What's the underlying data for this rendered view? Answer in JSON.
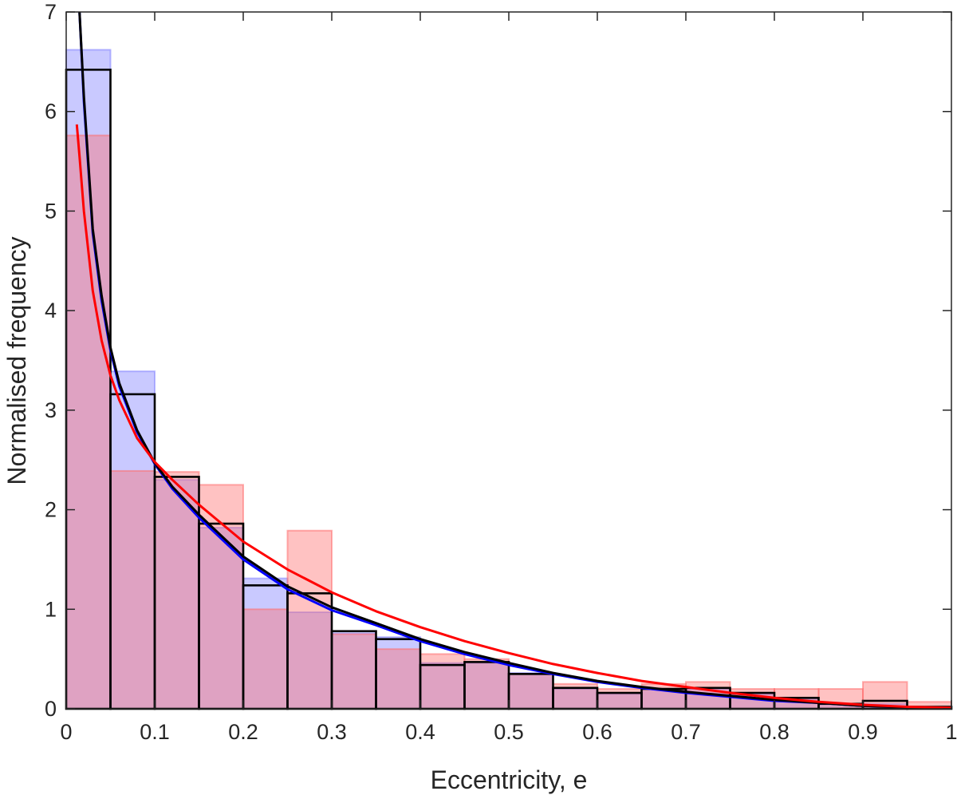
{
  "chart_data": {
    "type": "bar",
    "title": "",
    "xlabel": "Eccentricity, e",
    "ylabel": "Normalised frequency",
    "xlim": [
      0,
      1
    ],
    "ylim": [
      0,
      7
    ],
    "xticks": [
      0,
      0.1,
      0.2,
      0.3,
      0.4,
      0.5,
      0.6,
      0.7,
      0.8,
      0.9,
      1
    ],
    "xtick_labels": [
      "0",
      "0.1",
      "0.2",
      "0.3",
      "0.4",
      "0.5",
      "0.6",
      "0.7",
      "0.8",
      "0.9",
      "1"
    ],
    "yticks": [
      0,
      1,
      2,
      3,
      4,
      5,
      6,
      7
    ],
    "ytick_labels": [
      "0",
      "1",
      "2",
      "3",
      "4",
      "5",
      "6",
      "7"
    ],
    "grid": false,
    "box": true,
    "bin_width": 0.05,
    "bin_edges": [
      0,
      0.05,
      0.1,
      0.15,
      0.2,
      0.25,
      0.3,
      0.35,
      0.4,
      0.45,
      0.5,
      0.55,
      0.6,
      0.65,
      0.7,
      0.75,
      0.8,
      0.85,
      0.9,
      0.95,
      1.0
    ],
    "histograms": [
      {
        "style": "filled",
        "color": "#7f7fff",
        "opacity": 0.42,
        "values": [
          6.62,
          3.39,
          2.3,
          1.82,
          1.31,
          0.97,
          0.76,
          0.72,
          0.46,
          0.46,
          0.36,
          0.2,
          0.15,
          0.2,
          0.2,
          0.15,
          0.1,
          0.05,
          0.05,
          0.0
        ]
      },
      {
        "style": "filled",
        "color": "#ff6e6e",
        "opacity": 0.42,
        "values": [
          5.76,
          2.39,
          2.38,
          2.25,
          1.0,
          1.79,
          0.75,
          0.6,
          0.55,
          0.5,
          0.35,
          0.25,
          0.2,
          0.25,
          0.27,
          0.2,
          0.2,
          0.2,
          0.27,
          0.07
        ]
      },
      {
        "style": "outline",
        "color": "#000000",
        "values": [
          6.42,
          3.16,
          2.33,
          1.86,
          1.24,
          1.16,
          0.78,
          0.7,
          0.44,
          0.47,
          0.35,
          0.21,
          0.16,
          0.2,
          0.21,
          0.16,
          0.11,
          0.05,
          0.08,
          0.02
        ]
      }
    ],
    "curves": [
      {
        "color": "#0000ff",
        "points": [
          [
            0.015,
            7.0
          ],
          [
            0.02,
            6.1
          ],
          [
            0.03,
            4.78
          ],
          [
            0.04,
            4.1
          ],
          [
            0.05,
            3.6
          ],
          [
            0.06,
            3.24
          ],
          [
            0.08,
            2.78
          ],
          [
            0.1,
            2.46
          ],
          [
            0.12,
            2.21
          ],
          [
            0.15,
            1.92
          ],
          [
            0.2,
            1.5
          ],
          [
            0.25,
            1.2
          ],
          [
            0.3,
            0.99
          ],
          [
            0.35,
            0.84
          ],
          [
            0.4,
            0.68
          ],
          [
            0.45,
            0.55
          ],
          [
            0.5,
            0.44
          ],
          [
            0.55,
            0.35
          ],
          [
            0.6,
            0.27
          ],
          [
            0.65,
            0.21
          ],
          [
            0.7,
            0.16
          ],
          [
            0.75,
            0.12
          ],
          [
            0.8,
            0.08
          ],
          [
            0.85,
            0.06
          ],
          [
            0.9,
            0.03
          ],
          [
            0.95,
            0.015
          ],
          [
            1.0,
            0.005
          ]
        ]
      },
      {
        "color": "#000000",
        "points": [
          [
            0.015,
            7.0
          ],
          [
            0.02,
            6.15
          ],
          [
            0.03,
            4.82
          ],
          [
            0.04,
            4.15
          ],
          [
            0.05,
            3.63
          ],
          [
            0.06,
            3.27
          ],
          [
            0.08,
            2.8
          ],
          [
            0.1,
            2.47
          ],
          [
            0.12,
            2.23
          ],
          [
            0.15,
            1.95
          ],
          [
            0.2,
            1.53
          ],
          [
            0.25,
            1.23
          ],
          [
            0.3,
            1.02
          ],
          [
            0.35,
            0.86
          ],
          [
            0.4,
            0.7
          ],
          [
            0.45,
            0.57
          ],
          [
            0.5,
            0.46
          ],
          [
            0.55,
            0.36
          ],
          [
            0.6,
            0.28
          ],
          [
            0.65,
            0.22
          ],
          [
            0.7,
            0.17
          ],
          [
            0.75,
            0.13
          ],
          [
            0.8,
            0.09
          ],
          [
            0.85,
            0.06
          ],
          [
            0.9,
            0.03
          ],
          [
            0.95,
            0.015
          ],
          [
            1.0,
            0.005
          ]
        ]
      },
      {
        "color": "#ff0000",
        "points": [
          [
            0.012,
            5.87
          ],
          [
            0.015,
            5.55
          ],
          [
            0.02,
            5.0
          ],
          [
            0.03,
            4.2
          ],
          [
            0.04,
            3.7
          ],
          [
            0.05,
            3.35
          ],
          [
            0.06,
            3.1
          ],
          [
            0.08,
            2.72
          ],
          [
            0.1,
            2.48
          ],
          [
            0.12,
            2.3
          ],
          [
            0.15,
            2.05
          ],
          [
            0.2,
            1.68
          ],
          [
            0.25,
            1.4
          ],
          [
            0.3,
            1.17
          ],
          [
            0.35,
            0.98
          ],
          [
            0.4,
            0.82
          ],
          [
            0.45,
            0.68
          ],
          [
            0.5,
            0.56
          ],
          [
            0.55,
            0.45
          ],
          [
            0.6,
            0.36
          ],
          [
            0.65,
            0.28
          ],
          [
            0.7,
            0.22
          ],
          [
            0.75,
            0.16
          ],
          [
            0.8,
            0.11
          ],
          [
            0.85,
            0.07
          ],
          [
            0.9,
            0.04
          ],
          [
            0.95,
            0.02
          ],
          [
            1.0,
            0.01
          ]
        ]
      }
    ]
  }
}
